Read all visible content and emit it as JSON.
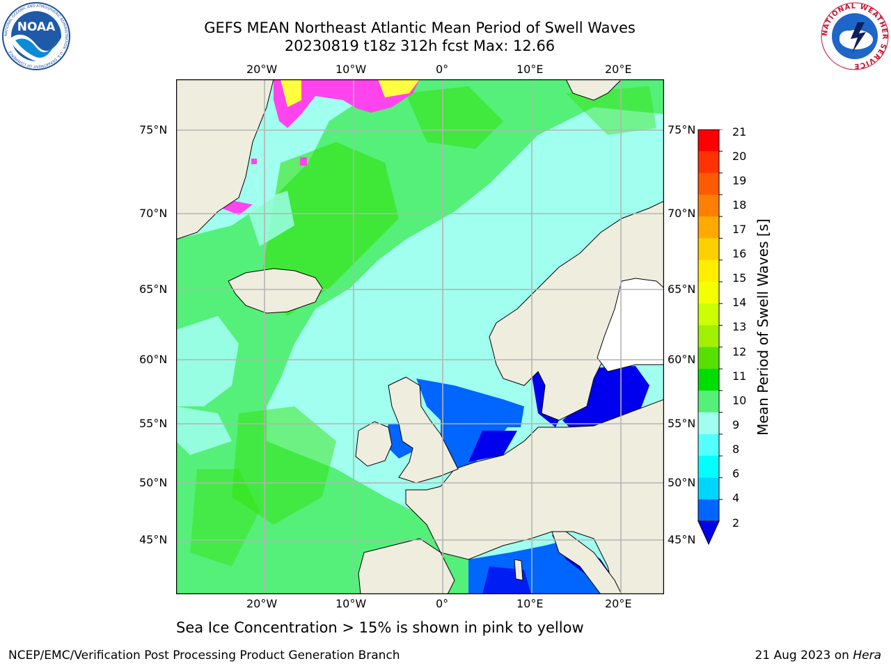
{
  "title_line1": "GEFS MEAN Northeast Atlantic Mean Period of Swell Waves",
  "title_line2": "20230819 t18z 312h fcst   Max: 12.66",
  "lon_labels": [
    "20°W",
    "10°W",
    "0°",
    "10°E",
    "20°E"
  ],
  "lat_labels": [
    "75°N",
    "70°N",
    "65°N",
    "60°N",
    "55°N",
    "50°N",
    "45°N"
  ],
  "colorbar": {
    "label": "Mean Period of Swell Waves [s]",
    "ticks": [
      "21",
      "20",
      "19",
      "18",
      "17",
      "16",
      "15",
      "14",
      "13",
      "12",
      "11",
      "10",
      "9",
      "8",
      "6",
      "4",
      "2"
    ],
    "colors": [
      "#ff0000",
      "#ff3300",
      "#ff5a00",
      "#ff8000",
      "#ffaa00",
      "#ffd000",
      "#ffee00",
      "#f4ff00",
      "#ccff00",
      "#a0f000",
      "#55e000",
      "#00dd00",
      "#55f07a",
      "#a0ffee",
      "#55ffff",
      "#00ffff",
      "#00d5ff",
      "#0066ff"
    ],
    "extend_color": "#0000ee"
  },
  "ice_note": "Sea Ice Concentration > 15% is shown in pink to yellow",
  "credit": "NCEP/EMC/Verification Post Processing Product Generation Branch",
  "date_text": "21 Aug 2023 on ",
  "host": "Hera",
  "logos": {
    "noaa_text": "NOAA",
    "noaa_ring": "NATIONAL OCEANIC AND ATMOSPHERIC ADMINISTRATION · U.S. DEPARTMENT OF COMMERCE",
    "nws_ring": "NATIONAL WEATHER SERVICE"
  },
  "colors": {
    "land": "#efedde",
    "grid": "#b4b4b4",
    "ocean_cyan": "#a0ffee",
    "ocean_green": "#55f07a",
    "ocean_dark_green": "#2ee000",
    "shallow_blue": "#0066ff",
    "deep_blue": "#0000ee",
    "ice_pink": "#ff44ee",
    "ice_yellow": "#ffff40"
  }
}
